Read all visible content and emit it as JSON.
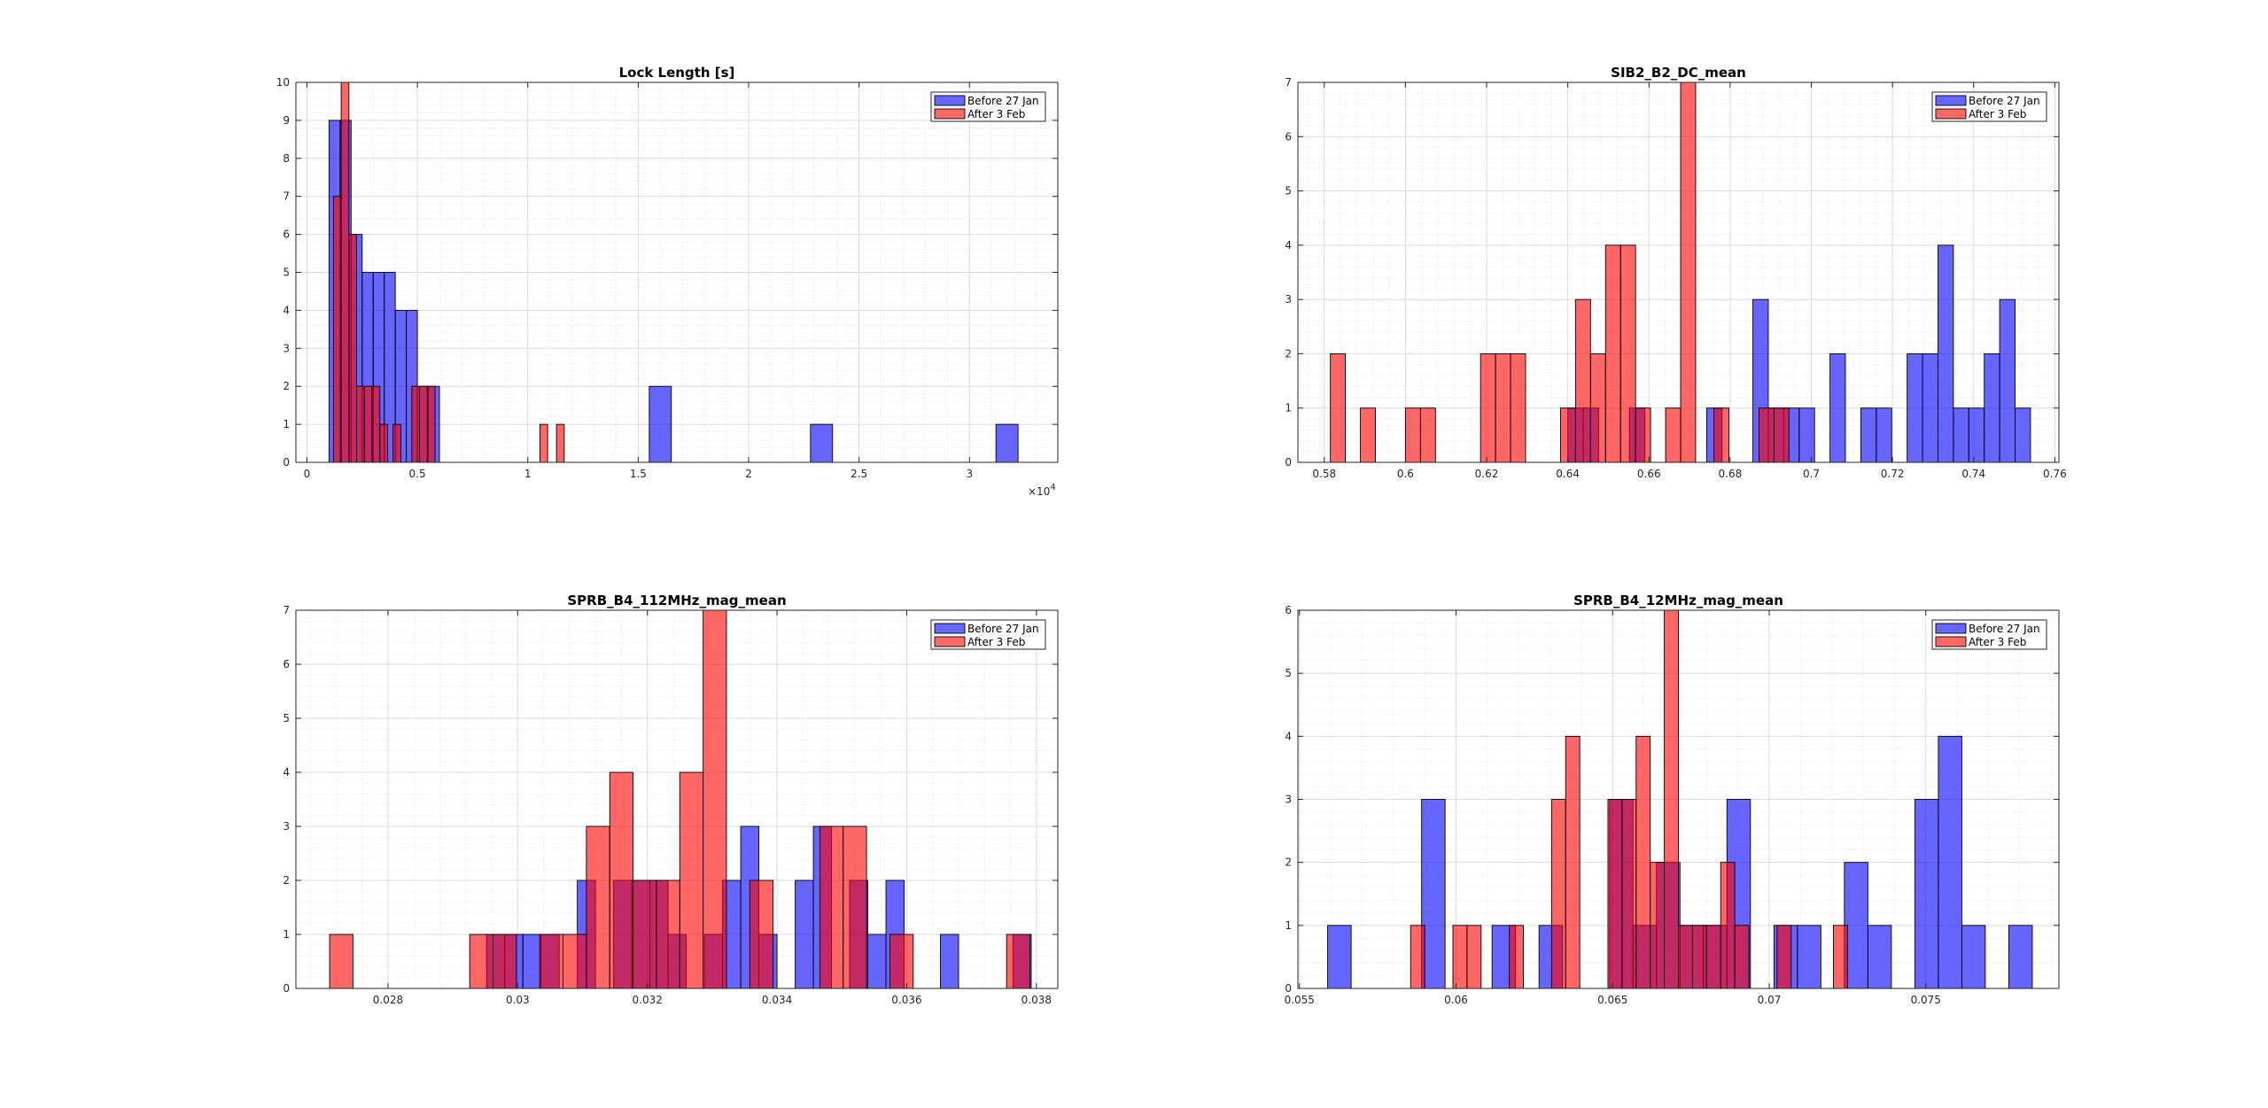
{
  "colors": {
    "before": "#0000ff",
    "after": "#ff0000",
    "bar_alpha": 0.6
  },
  "chart_data": [
    {
      "type": "bar",
      "title": "Lock Length [s]",
      "xlim": [
        -500,
        34000
      ],
      "ylim": [
        0,
        10
      ],
      "xticks": [
        0,
        5000,
        10000,
        15000,
        20000,
        25000,
        30000
      ],
      "xticklabels": [
        "0",
        "0.5",
        "1",
        "1.5",
        "2",
        "2.5",
        "3"
      ],
      "yticks": [
        0,
        1,
        2,
        3,
        4,
        5,
        6,
        7,
        8,
        9,
        10
      ],
      "exponent_label": "×10",
      "exponent_power": "4",
      "grid": true,
      "legend_position": "top-right",
      "series": [
        {
          "name": "Before 27 Jan",
          "color": "#0000ff",
          "bins": [
            [
              1000,
              1500,
              9
            ],
            [
              1500,
              2000,
              9
            ],
            [
              2000,
              2500,
              6
            ],
            [
              2500,
              3000,
              5
            ],
            [
              3000,
              3500,
              5
            ],
            [
              3500,
              4000,
              5
            ],
            [
              4000,
              4500,
              4
            ],
            [
              4500,
              5000,
              4
            ],
            [
              5000,
              5500,
              2
            ],
            [
              5500,
              6000,
              2
            ],
            [
              15500,
              16500,
              2
            ],
            [
              22800,
              23800,
              1
            ],
            [
              31200,
              32200,
              1
            ]
          ]
        },
        {
          "name": "After 3 Feb",
          "color": "#ff0000",
          "bins": [
            [
              1200,
              1550,
              7
            ],
            [
              1550,
              1900,
              10
            ],
            [
              1900,
              2250,
              6
            ],
            [
              2250,
              2600,
              2
            ],
            [
              2600,
              2950,
              2
            ],
            [
              2950,
              3300,
              2
            ],
            [
              3300,
              3650,
              1
            ],
            [
              3900,
              4250,
              1
            ],
            [
              4750,
              5100,
              2
            ],
            [
              5100,
              5450,
              2
            ],
            [
              5450,
              5800,
              2
            ],
            [
              10550,
              10900,
              1
            ],
            [
              11300,
              11650,
              1
            ]
          ]
        }
      ]
    },
    {
      "type": "bar",
      "title": "SIB2_B2_DC_mean",
      "xlim": [
        0.5735,
        0.761
      ],
      "ylim": [
        0,
        7
      ],
      "xticks": [
        0.58,
        0.6,
        0.62,
        0.64,
        0.66,
        0.68,
        0.7,
        0.72,
        0.74,
        0.76
      ],
      "xticklabels": [
        "0.58",
        "0.6",
        "0.62",
        "0.64",
        "0.66",
        "0.68",
        "0.7",
        "0.72",
        "0.74",
        "0.76"
      ],
      "yticks": [
        0,
        1,
        2,
        3,
        4,
        5,
        6,
        7
      ],
      "grid": true,
      "legend_position": "top-right",
      "series": [
        {
          "name": "Before 27 Jan",
          "color": "#0000ff",
          "bins": [
            [
              0.64,
              0.6438,
              1
            ],
            [
              0.6438,
              0.6476,
              1
            ],
            [
              0.6552,
              0.659,
              1
            ],
            [
              0.6742,
              0.678,
              1
            ],
            [
              0.6856,
              0.6894,
              3
            ],
            [
              0.6894,
              0.6932,
              1
            ],
            [
              0.6932,
              0.697,
              1
            ],
            [
              0.697,
              0.7008,
              1
            ],
            [
              0.7046,
              0.7084,
              2
            ],
            [
              0.7122,
              0.716,
              1
            ],
            [
              0.716,
              0.7198,
              1
            ],
            [
              0.7236,
              0.7274,
              2
            ],
            [
              0.7274,
              0.7312,
              2
            ],
            [
              0.7312,
              0.735,
              4
            ],
            [
              0.735,
              0.7388,
              1
            ],
            [
              0.7388,
              0.7426,
              1
            ],
            [
              0.7426,
              0.7464,
              2
            ],
            [
              0.7464,
              0.7502,
              3
            ],
            [
              0.7502,
              0.754,
              1
            ]
          ]
        },
        {
          "name": "After 3 Feb",
          "color": "#ff0000",
          "bins": [
            [
              0.5815,
              0.5852,
              2
            ],
            [
              0.5889,
              0.5926,
              1
            ],
            [
              0.6,
              0.6037,
              1
            ],
            [
              0.6037,
              0.6074,
              1
            ],
            [
              0.6185,
              0.6222,
              2
            ],
            [
              0.6222,
              0.6259,
              2
            ],
            [
              0.6259,
              0.6296,
              2
            ],
            [
              0.6382,
              0.6419,
              1
            ],
            [
              0.6419,
              0.6456,
              3
            ],
            [
              0.6456,
              0.6493,
              2
            ],
            [
              0.6493,
              0.653,
              4
            ],
            [
              0.653,
              0.6567,
              4
            ],
            [
              0.6567,
              0.6604,
              1
            ],
            [
              0.6641,
              0.6678,
              1
            ],
            [
              0.6678,
              0.6715,
              7
            ],
            [
              0.676,
              0.6797,
              1
            ],
            [
              0.6871,
              0.6908,
              1
            ],
            [
              0.6908,
              0.6945,
              1
            ]
          ]
        }
      ]
    },
    {
      "type": "bar",
      "title": "SPRB_B4_112MHz_mag_mean",
      "xlim": [
        0.02658,
        0.03833
      ],
      "ylim": [
        0,
        7
      ],
      "xticks": [
        0.028,
        0.03,
        0.032,
        0.034,
        0.036,
        0.038
      ],
      "xticklabels": [
        "0.028",
        "0.03",
        "0.032",
        "0.034",
        "0.036",
        "0.038"
      ],
      "yticks": [
        0,
        1,
        2,
        3,
        4,
        5,
        6,
        7
      ],
      "grid": true,
      "legend_position": "top-right",
      "series": [
        {
          "name": "Before 27 Jan",
          "color": "#0000ff",
          "bins": [
            [
              0.02952,
              0.0298,
              1
            ],
            [
              0.0298,
              0.03008,
              1
            ],
            [
              0.03008,
              0.03036,
              1
            ],
            [
              0.03036,
              0.03064,
              1
            ],
            [
              0.03092,
              0.0312,
              2
            ],
            [
              0.03148,
              0.03176,
              2
            ],
            [
              0.03176,
              0.03204,
              2
            ],
            [
              0.03204,
              0.03232,
              2
            ],
            [
              0.03232,
              0.0326,
              1
            ],
            [
              0.03288,
              0.03316,
              1
            ],
            [
              0.03316,
              0.03344,
              2
            ],
            [
              0.03344,
              0.03372,
              3
            ],
            [
              0.03372,
              0.034,
              1
            ],
            [
              0.03428,
              0.03456,
              2
            ],
            [
              0.03456,
              0.03484,
              3
            ],
            [
              0.03512,
              0.0354,
              2
            ],
            [
              0.0354,
              0.03568,
              1
            ],
            [
              0.03568,
              0.03596,
              2
            ],
            [
              0.03652,
              0.0368,
              1
            ],
            [
              0.03764,
              0.03792,
              1
            ]
          ]
        },
        {
          "name": "After 3 Feb",
          "color": "#ff0000",
          "bins": [
            [
              0.0271,
              0.02746,
              1
            ],
            [
              0.02926,
              0.02962,
              1
            ],
            [
              0.02962,
              0.02998,
              1
            ],
            [
              0.03034,
              0.0307,
              1
            ],
            [
              0.0307,
              0.03106,
              1
            ],
            [
              0.03106,
              0.03142,
              3
            ],
            [
              0.03142,
              0.03178,
              4
            ],
            [
              0.03178,
              0.03214,
              2
            ],
            [
              0.03214,
              0.0325,
              2
            ],
            [
              0.0325,
              0.03286,
              4
            ],
            [
              0.03286,
              0.03322,
              7
            ],
            [
              0.03358,
              0.03394,
              2
            ],
            [
              0.03466,
              0.03502,
              3
            ],
            [
              0.03502,
              0.03538,
              3
            ],
            [
              0.03574,
              0.0361,
              1
            ],
            [
              0.03754,
              0.0379,
              1
            ]
          ]
        }
      ]
    },
    {
      "type": "bar",
      "title": "SPRB_B4_12MHz_mag_mean",
      "xlim": [
        0.05495,
        0.07925
      ],
      "ylim": [
        0,
        6
      ],
      "xticks": [
        0.055,
        0.06,
        0.065,
        0.07,
        0.075
      ],
      "xticklabels": [
        "0.055",
        "0.06",
        "0.065",
        "0.07",
        "0.075"
      ],
      "yticks": [
        0,
        1,
        2,
        3,
        4,
        5,
        6
      ],
      "grid": true,
      "legend_position": "top-right",
      "series": [
        {
          "name": "Before 27 Jan",
          "color": "#0000ff",
          "bins": [
            [
              0.0559,
              0.05665,
              1
            ],
            [
              0.0589,
              0.05965,
              3
            ],
            [
              0.06115,
              0.0619,
              1
            ],
            [
              0.06265,
              0.0634,
              1
            ],
            [
              0.0649,
              0.06565,
              3
            ],
            [
              0.06565,
              0.0664,
              1
            ],
            [
              0.0664,
              0.06715,
              2
            ],
            [
              0.06715,
              0.0679,
              1
            ],
            [
              0.0679,
              0.06865,
              1
            ],
            [
              0.06865,
              0.0694,
              3
            ],
            [
              0.07015,
              0.0709,
              1
            ],
            [
              0.0709,
              0.07165,
              1
            ],
            [
              0.0724,
              0.07315,
              2
            ],
            [
              0.07315,
              0.0739,
              1
            ],
            [
              0.07465,
              0.0754,
              3
            ],
            [
              0.0754,
              0.07615,
              4
            ],
            [
              0.07615,
              0.0769,
              1
            ],
            [
              0.07765,
              0.0784,
              1
            ]
          ]
        },
        {
          "name": "After 3 Feb",
          "color": "#ff0000",
          "bins": [
            [
              0.05855,
              0.059,
              1
            ],
            [
              0.0599,
              0.06035,
              1
            ],
            [
              0.06035,
              0.0608,
              1
            ],
            [
              0.0617,
              0.06215,
              1
            ],
            [
              0.06305,
              0.0635,
              3
            ],
            [
              0.0635,
              0.06395,
              4
            ],
            [
              0.06485,
              0.0653,
              3
            ],
            [
              0.0653,
              0.06575,
              3
            ],
            [
              0.06575,
              0.0662,
              4
            ],
            [
              0.0662,
              0.06665,
              2
            ],
            [
              0.06665,
              0.0671,
              6
            ],
            [
              0.0671,
              0.06755,
              1
            ],
            [
              0.06755,
              0.068,
              1
            ],
            [
              0.068,
              0.06845,
              1
            ],
            [
              0.06845,
              0.0689,
              2
            ],
            [
              0.0689,
              0.06935,
              1
            ],
            [
              0.07025,
              0.0707,
              1
            ],
            [
              0.07205,
              0.0725,
              1
            ]
          ]
        }
      ]
    }
  ]
}
